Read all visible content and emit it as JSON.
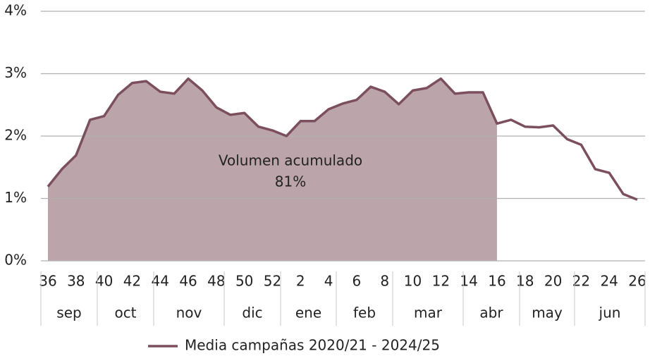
{
  "chart_data": {
    "type": "line",
    "annotation": [
      "Volumen acumulado",
      "81%"
    ],
    "categories": [
      "36",
      null,
      "38",
      null,
      "40",
      null,
      "42",
      null,
      "44",
      null,
      "46",
      null,
      "48",
      null,
      "50",
      null,
      "52",
      null,
      "2",
      null,
      "4",
      null,
      "6",
      null,
      "8",
      null,
      "10",
      null,
      "12",
      null,
      "14",
      null,
      "16",
      null,
      "18",
      null,
      "20",
      null,
      "22",
      null,
      "24",
      null,
      "26"
    ],
    "months": [
      "sep",
      "oct",
      "nov",
      "dic",
      "ene",
      "feb",
      "mar",
      "abr",
      "may",
      "jun"
    ],
    "series": [
      {
        "name": "Media campañas 2020/21 - 2024/25",
        "color": "#7b4f5e",
        "area_color": "#bca5aa",
        "values": [
          1.19,
          1.47,
          1.69,
          2.26,
          2.32,
          2.66,
          2.85,
          2.88,
          2.71,
          2.68,
          2.92,
          2.73,
          2.46,
          2.34,
          2.37,
          2.15,
          2.09,
          2.0,
          2.24,
          2.24,
          2.43,
          2.52,
          2.58,
          2.79,
          2.71,
          2.51,
          2.73,
          2.77,
          2.92,
          2.68,
          2.7,
          2.7,
          2.2,
          2.26,
          2.15,
          2.14,
          2.17,
          1.95,
          1.86,
          1.47,
          1.41,
          1.07,
          0.98
        ]
      }
    ],
    "ylim": [
      0,
      4
    ],
    "yticks": [
      {
        "value": 0,
        "label": "0%"
      },
      {
        "value": 1,
        "label": "1%"
      },
      {
        "value": 2,
        "label": "2%"
      },
      {
        "value": 3,
        "label": "3%"
      },
      {
        "value": 4,
        "label": "4%"
      }
    ],
    "grid": true
  }
}
